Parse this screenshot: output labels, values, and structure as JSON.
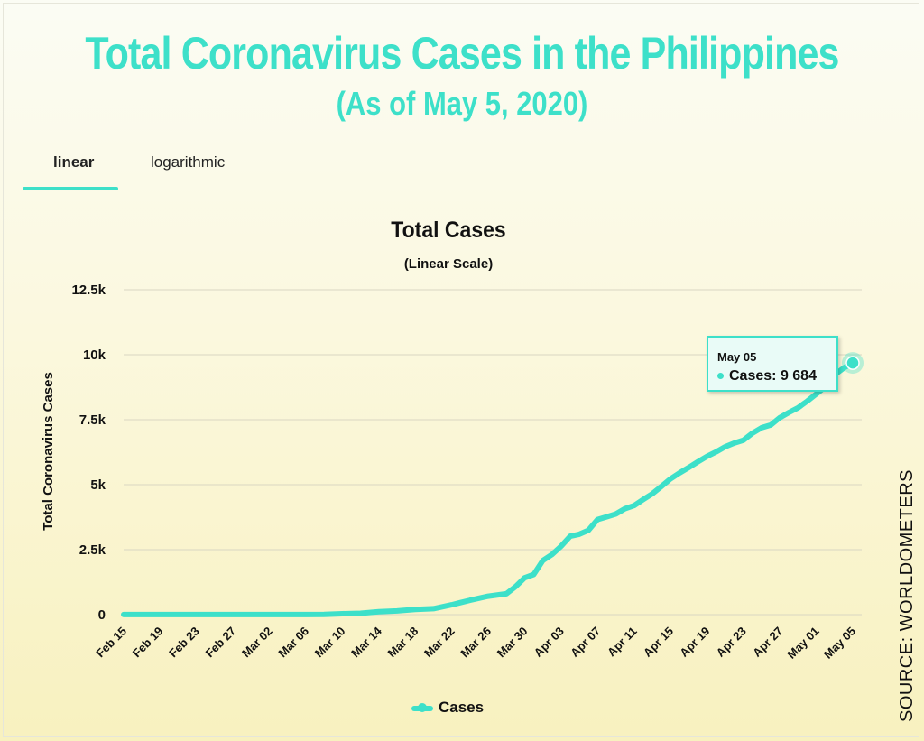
{
  "header": {
    "title": "Total Coronavirus Cases in the Philippines",
    "subtitle": "(As of May 5, 2020)"
  },
  "tabs": [
    {
      "label": "linear",
      "active": true
    },
    {
      "label": "logarithmic",
      "active": false
    }
  ],
  "source": "SOURCE: WORLDOMETERS",
  "colors": {
    "accent": "#3de0c9"
  },
  "tooltip": {
    "date": "May 05",
    "series": "Cases",
    "value_text": "9 684"
  },
  "chart_data": {
    "type": "line",
    "title": "Total Cases",
    "subtitle": "(Linear Scale)",
    "ylabel": "Total Coronavirus Cases",
    "xlabel": "",
    "ylim": [
      0,
      12500
    ],
    "yticks": [
      0,
      2500,
      5000,
      7500,
      10000,
      12500
    ],
    "ytick_labels": [
      "0",
      "2.5k",
      "5k",
      "7.5k",
      "10k",
      "12.5k"
    ],
    "xtick_labels": [
      "Feb 15",
      "Feb 19",
      "Feb 23",
      "Feb 27",
      "Mar 02",
      "Mar 06",
      "Mar 10",
      "Mar 14",
      "Mar 18",
      "Mar 22",
      "Mar 26",
      "Mar 30",
      "Apr 03",
      "Apr 07",
      "Apr 11",
      "Apr 15",
      "Apr 19",
      "Apr 23",
      "Apr 27",
      "May 01",
      "May 05"
    ],
    "grid": true,
    "legend": "bottom",
    "series": [
      {
        "name": "Cases",
        "x": [
          "Feb 15",
          "Feb 19",
          "Feb 23",
          "Feb 27",
          "Mar 02",
          "Mar 06",
          "Mar 08",
          "Mar 10",
          "Mar 12",
          "Mar 14",
          "Mar 16",
          "Mar 18",
          "Mar 20",
          "Mar 22",
          "Mar 24",
          "Mar 26",
          "Mar 28",
          "Mar 29",
          "Mar 30",
          "Mar 31",
          "Apr 01",
          "Apr 02",
          "Apr 03",
          "Apr 04",
          "Apr 05",
          "Apr 06",
          "Apr 07",
          "Apr 08",
          "Apr 09",
          "Apr 10",
          "Apr 11",
          "Apr 12",
          "Apr 13",
          "Apr 14",
          "Apr 15",
          "Apr 16",
          "Apr 17",
          "Apr 18",
          "Apr 19",
          "Apr 20",
          "Apr 21",
          "Apr 22",
          "Apr 23",
          "Apr 24",
          "Apr 25",
          "Apr 26",
          "Apr 27",
          "Apr 28",
          "Apr 29",
          "Apr 30",
          "May 01",
          "May 02",
          "May 03",
          "May 04",
          "May 05"
        ],
        "values": [
          3,
          3,
          3,
          3,
          3,
          5,
          10,
          33,
          52,
          111,
          142,
          202,
          230,
          380,
          552,
          707,
          803,
          1075,
          1418,
          1546,
          2084,
          2311,
          2633,
          3018,
          3094,
          3246,
          3660,
          3764,
          3870,
          4076,
          4195,
          4428,
          4648,
          4932,
          5223,
          5453,
          5660,
          5878,
          6087,
          6259,
          6459,
          6599,
          6710,
          6981,
          7192,
          7294,
          7579,
          7777,
          7958,
          8212,
          8488,
          8772,
          9223,
          9485,
          9684
        ]
      }
    ]
  }
}
